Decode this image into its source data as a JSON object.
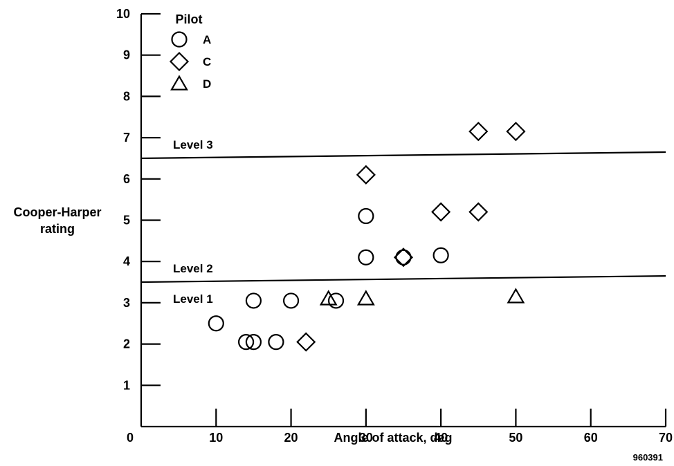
{
  "chart_data": {
    "type": "scatter",
    "xlabel": "Angle of attack, deg",
    "ylabel_lines": [
      "Cooper-Harper",
      "rating"
    ],
    "xlim": [
      0,
      70
    ],
    "ylim": [
      0,
      10
    ],
    "x_ticks": [
      "0",
      "10",
      "20",
      "30",
      "40",
      "50",
      "60",
      "70"
    ],
    "y_ticks": [
      "1",
      "2",
      "3",
      "4",
      "5",
      "6",
      "7",
      "8",
      "9",
      "10"
    ],
    "legend_title": "Pilot",
    "legend_position": "top-left",
    "grid": false,
    "series": [
      {
        "name": "A",
        "marker": "circle",
        "points": [
          [
            10,
            2.5
          ],
          [
            14,
            2.05
          ],
          [
            15,
            2.05
          ],
          [
            15,
            3.05
          ],
          [
            18,
            2.05
          ],
          [
            20,
            3.05
          ],
          [
            26,
            3.05
          ],
          [
            30,
            5.1
          ],
          [
            30,
            4.1
          ],
          [
            35,
            4.1
          ],
          [
            40,
            4.15
          ]
        ]
      },
      {
        "name": "C",
        "marker": "diamond",
        "points": [
          [
            22,
            2.05
          ],
          [
            30,
            6.1
          ],
          [
            35,
            4.1
          ],
          [
            40,
            5.2
          ],
          [
            45,
            5.2
          ],
          [
            45,
            7.15
          ],
          [
            50,
            7.15
          ]
        ]
      },
      {
        "name": "D",
        "marker": "triangle",
        "points": [
          [
            25,
            3.1
          ],
          [
            30,
            3.1
          ],
          [
            50,
            3.15
          ]
        ]
      }
    ],
    "boundaries": [
      {
        "label_above": "Level 3",
        "y_start": 6.5,
        "y_end": 6.65
      },
      {
        "label_above": "Level 2",
        "label_below": "Level 1",
        "y_start": 3.5,
        "y_end": 3.65
      }
    ]
  },
  "figure_id": "960391"
}
